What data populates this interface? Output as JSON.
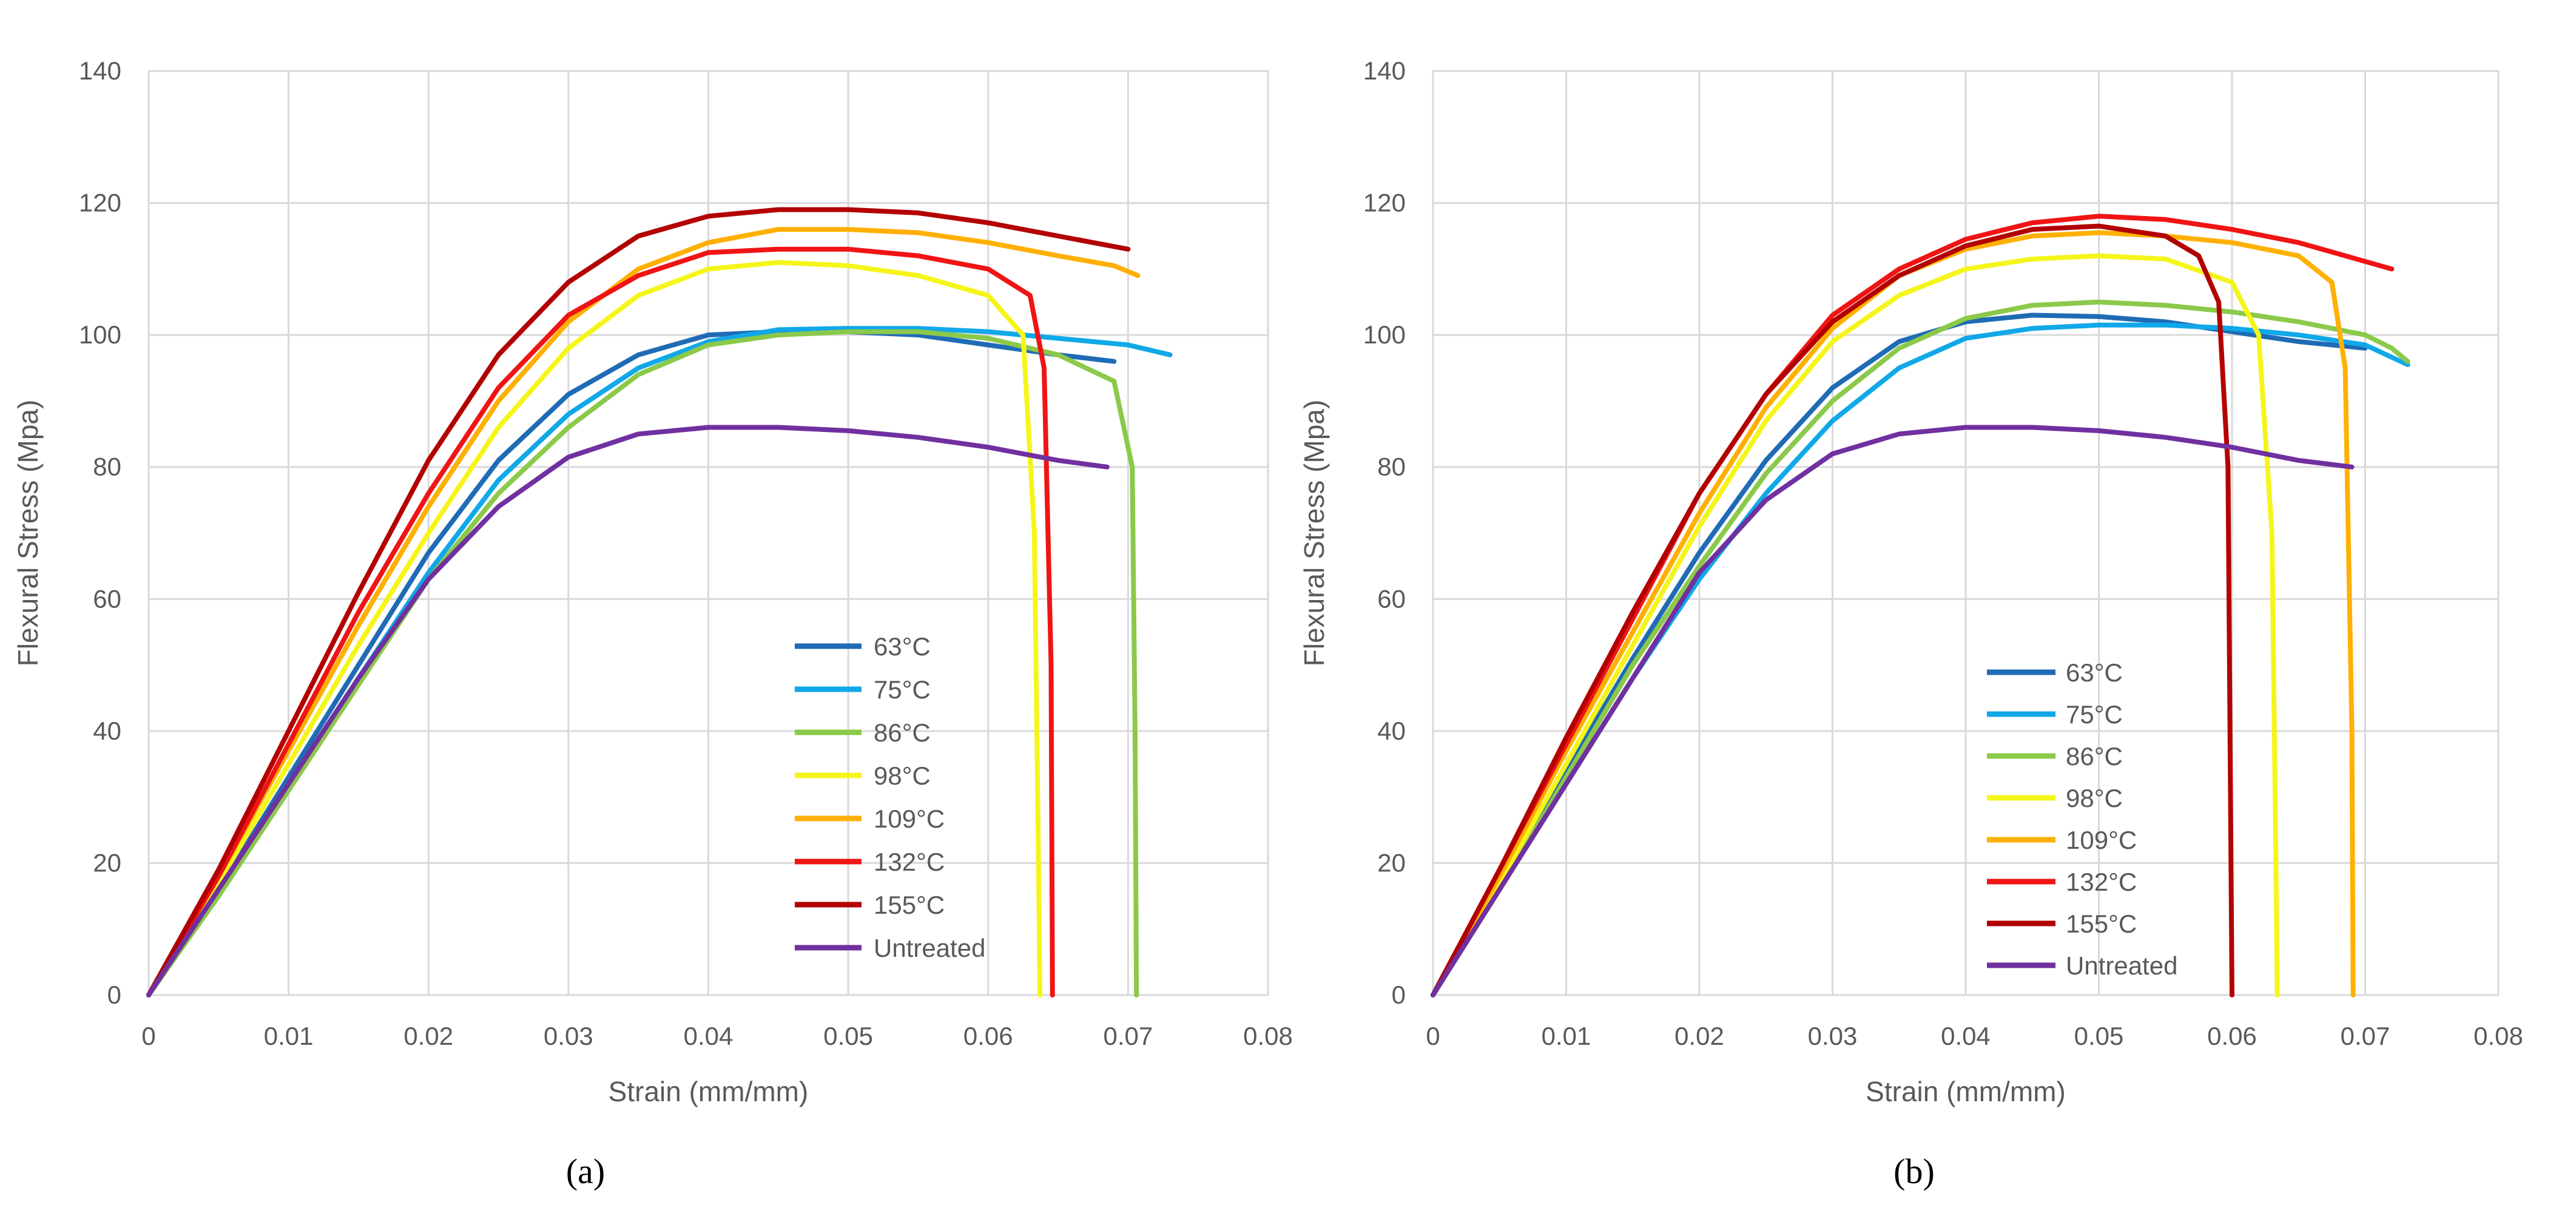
{
  "chart_data": [
    {
      "type": "line",
      "panel_label": "(a)",
      "xlabel": "Strain (mm/mm)",
      "ylabel": "Flexural Stress (Mpa)",
      "xlim": [
        0,
        0.08
      ],
      "ylim": [
        0,
        140
      ],
      "x_ticks": [
        0,
        0.01,
        0.02,
        0.03,
        0.04,
        0.05,
        0.06,
        0.07,
        0.08
      ],
      "x_tick_labels": [
        "0",
        "0.01",
        "0.02",
        "0.03",
        "0.04",
        "0.05",
        "0.06",
        "0.07",
        "0.08"
      ],
      "y_ticks": [
        0,
        20,
        40,
        60,
        80,
        100,
        120,
        140
      ],
      "y_tick_labels": [
        "0",
        "20",
        "40",
        "60",
        "80",
        "100",
        "120",
        "140"
      ],
      "grid": true,
      "legend_position": "lower-right",
      "series": [
        {
          "name": "63°C",
          "color": "#1F6BB5",
          "x": [
            0,
            0.005,
            0.01,
            0.015,
            0.02,
            0.025,
            0.03,
            0.035,
            0.04,
            0.045,
            0.05,
            0.055,
            0.06,
            0.065,
            0.069
          ],
          "y": [
            0,
            16,
            33,
            50,
            67,
            81,
            91,
            97,
            100,
            100.5,
            100.5,
            100,
            98.5,
            97,
            96
          ]
        },
        {
          "name": "75°C",
          "color": "#10A8E8",
          "x": [
            0,
            0.005,
            0.01,
            0.015,
            0.02,
            0.025,
            0.03,
            0.035,
            0.04,
            0.045,
            0.05,
            0.055,
            0.06,
            0.065,
            0.07,
            0.073
          ],
          "y": [
            0,
            16,
            32,
            48,
            64,
            78,
            88,
            95,
            99,
            100.8,
            101,
            101,
            100.5,
            99.5,
            98.5,
            97
          ]
        },
        {
          "name": "86°C",
          "color": "#8BC94A",
          "x": [
            0,
            0.005,
            0.01,
            0.015,
            0.02,
            0.025,
            0.03,
            0.035,
            0.04,
            0.045,
            0.05,
            0.055,
            0.06,
            0.065,
            0.069,
            0.0703,
            0.0705,
            0.0706
          ],
          "y": [
            0,
            15,
            31,
            47,
            63,
            76,
            86,
            94,
            98.5,
            100,
            100.5,
            100.5,
            99.5,
            97,
            93,
            80,
            40,
            0
          ]
        },
        {
          "name": "98°C",
          "color": "#F5F51A",
          "x": [
            0,
            0.005,
            0.01,
            0.015,
            0.02,
            0.025,
            0.03,
            0.035,
            0.04,
            0.045,
            0.05,
            0.055,
            0.06,
            0.0625,
            0.0633,
            0.0636,
            0.0637
          ],
          "y": [
            0,
            17,
            35,
            53,
            70,
            86,
            98,
            106,
            110,
            111,
            110.5,
            109,
            106,
            100,
            70,
            20,
            0
          ]
        },
        {
          "name": "109°C",
          "color": "#FFB000",
          "x": [
            0,
            0.005,
            0.01,
            0.015,
            0.02,
            0.025,
            0.03,
            0.035,
            0.04,
            0.045,
            0.05,
            0.055,
            0.06,
            0.065,
            0.069,
            0.0707
          ],
          "y": [
            0,
            18,
            37,
            56,
            74,
            90,
            102,
            110,
            114,
            116,
            116,
            115.5,
            114,
            112,
            110.5,
            109
          ]
        },
        {
          "name": "132°C",
          "color": "#F01414",
          "x": [
            0,
            0.005,
            0.01,
            0.015,
            0.02,
            0.025,
            0.03,
            0.035,
            0.04,
            0.045,
            0.05,
            0.055,
            0.06,
            0.063,
            0.064,
            0.0645,
            0.0646
          ],
          "y": [
            0,
            18,
            38,
            58,
            76,
            92,
            103,
            109,
            112.5,
            113,
            113,
            112,
            110,
            106,
            95,
            50,
            0
          ]
        },
        {
          "name": "155°C",
          "color": "#B30000",
          "x": [
            0,
            0.005,
            0.01,
            0.015,
            0.02,
            0.025,
            0.03,
            0.035,
            0.04,
            0.045,
            0.05,
            0.055,
            0.06,
            0.065,
            0.07
          ],
          "y": [
            0,
            19,
            40,
            61,
            81,
            97,
            108,
            115,
            118,
            119,
            119,
            118.5,
            117,
            115,
            113
          ]
        },
        {
          "name": "Untreated",
          "color": "#7030A0",
          "x": [
            0,
            0.005,
            0.01,
            0.015,
            0.02,
            0.025,
            0.03,
            0.035,
            0.04,
            0.045,
            0.05,
            0.055,
            0.06,
            0.065,
            0.0685
          ],
          "y": [
            0,
            16,
            32,
            48,
            63,
            74,
            81.5,
            85,
            86,
            86,
            85.5,
            84.5,
            83,
            81,
            80
          ]
        }
      ]
    },
    {
      "type": "line",
      "panel_label": "(b)",
      "xlabel": "Strain (mm/mm)",
      "ylabel": "Flexural Stress (Mpa)",
      "xlim": [
        0,
        0.08
      ],
      "ylim": [
        0,
        140
      ],
      "x_ticks": [
        0,
        0.01,
        0.02,
        0.03,
        0.04,
        0.05,
        0.06,
        0.07,
        0.08
      ],
      "x_tick_labels": [
        "0",
        "0.01",
        "0.02",
        "0.03",
        "0.04",
        "0.05",
        "0.06",
        "0.07",
        "0.08"
      ],
      "y_ticks": [
        0,
        20,
        40,
        60,
        80,
        100,
        120,
        140
      ],
      "y_tick_labels": [
        "0",
        "20",
        "40",
        "60",
        "80",
        "100",
        "120",
        "140"
      ],
      "grid": true,
      "legend_position": "lower-right",
      "series": [
        {
          "name": "63°C",
          "color": "#1F6BB5",
          "x": [
            0,
            0.005,
            0.01,
            0.015,
            0.02,
            0.025,
            0.03,
            0.035,
            0.04,
            0.045,
            0.05,
            0.055,
            0.06,
            0.065,
            0.07
          ],
          "y": [
            0,
            17,
            34,
            51,
            67,
            81,
            92,
            99,
            102,
            103,
            102.8,
            102,
            100.5,
            99,
            98
          ]
        },
        {
          "name": "75°C",
          "color": "#10A8E8",
          "x": [
            0,
            0.005,
            0.01,
            0.015,
            0.02,
            0.025,
            0.03,
            0.035,
            0.04,
            0.045,
            0.05,
            0.055,
            0.06,
            0.065,
            0.07,
            0.0732
          ],
          "y": [
            0,
            16,
            32,
            48,
            63,
            76,
            87,
            95,
            99.5,
            101,
            101.5,
            101.5,
            101,
            100,
            98.5,
            95.5
          ]
        },
        {
          "name": "86°C",
          "color": "#8BC94A",
          "x": [
            0,
            0.005,
            0.01,
            0.015,
            0.02,
            0.025,
            0.03,
            0.035,
            0.04,
            0.045,
            0.05,
            0.055,
            0.06,
            0.065,
            0.07,
            0.072,
            0.0732
          ],
          "y": [
            0,
            16,
            33,
            50,
            65,
            79,
            90,
            98,
            102.5,
            104.5,
            105,
            104.5,
            103.5,
            102,
            100,
            98,
            96
          ]
        },
        {
          "name": "98°C",
          "color": "#F5F51A",
          "x": [
            0,
            0.005,
            0.01,
            0.015,
            0.02,
            0.025,
            0.03,
            0.035,
            0.04,
            0.045,
            0.05,
            0.055,
            0.06,
            0.062,
            0.063,
            0.0633,
            0.0634
          ],
          "y": [
            0,
            17,
            35,
            53,
            71,
            87,
            99,
            106,
            110,
            111.5,
            112,
            111.5,
            108,
            100,
            70,
            20,
            0
          ]
        },
        {
          "name": "109°C",
          "color": "#FFB000",
          "x": [
            0,
            0.005,
            0.01,
            0.015,
            0.02,
            0.025,
            0.03,
            0.035,
            0.04,
            0.045,
            0.05,
            0.055,
            0.06,
            0.065,
            0.0675,
            0.0685,
            0.069,
            0.0691
          ],
          "y": [
            0,
            18,
            37,
            55,
            73,
            89,
            101,
            109,
            113,
            115,
            115.5,
            115,
            114,
            112,
            108,
            95,
            40,
            0
          ]
        },
        {
          "name": "132°C",
          "color": "#F01414",
          "x": [
            0,
            0.005,
            0.01,
            0.015,
            0.02,
            0.025,
            0.03,
            0.035,
            0.04,
            0.045,
            0.05,
            0.055,
            0.06,
            0.065,
            0.072
          ],
          "y": [
            0,
            19,
            38,
            57,
            76,
            91,
            103,
            110,
            114.5,
            117,
            118,
            117.5,
            116,
            114,
            110
          ]
        },
        {
          "name": "155°C",
          "color": "#B30000",
          "x": [
            0,
            0.005,
            0.01,
            0.015,
            0.02,
            0.025,
            0.03,
            0.035,
            0.04,
            0.045,
            0.05,
            0.055,
            0.0575,
            0.059,
            0.0597,
            0.06
          ],
          "y": [
            0,
            19,
            39,
            58,
            76,
            91,
            102,
            109,
            113.5,
            116,
            116.5,
            115,
            112,
            105,
            80,
            0
          ]
        },
        {
          "name": "Untreated",
          "color": "#7030A0",
          "x": [
            0,
            0.005,
            0.01,
            0.015,
            0.02,
            0.025,
            0.03,
            0.035,
            0.04,
            0.045,
            0.05,
            0.055,
            0.06,
            0.065,
            0.069
          ],
          "y": [
            0,
            16,
            32,
            48,
            64,
            75,
            82,
            85,
            86,
            86,
            85.5,
            84.5,
            83,
            81,
            80
          ]
        }
      ]
    }
  ]
}
